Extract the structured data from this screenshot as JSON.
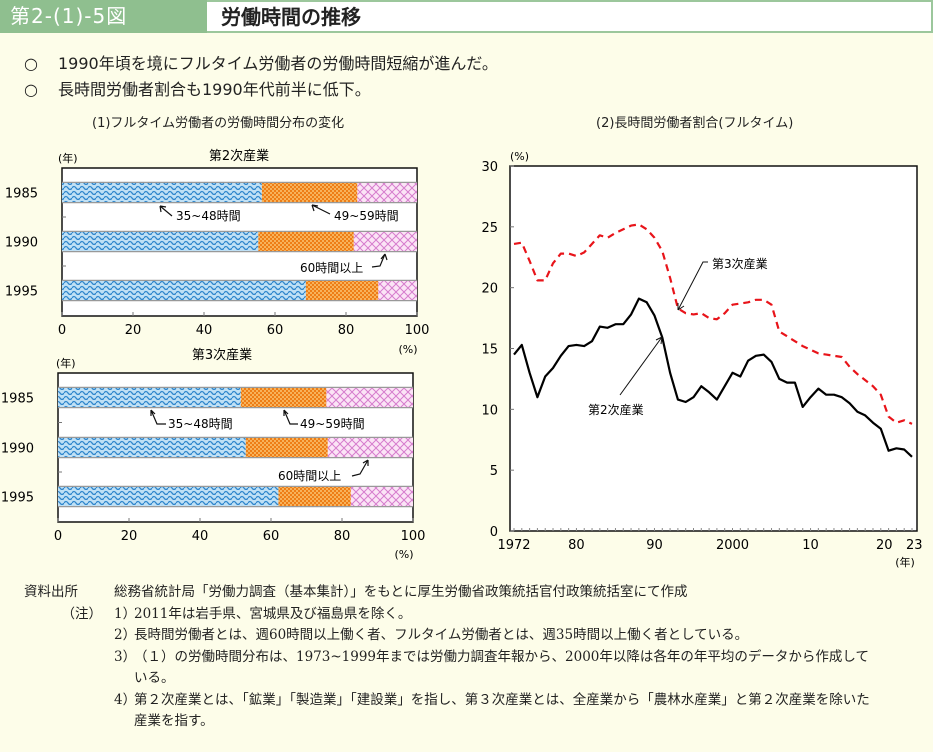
{
  "header": {
    "figure_number": "第2-(1)-5図",
    "title": "労働時間の推移"
  },
  "summary": [
    {
      "mark": "○",
      "text": "1990年頃を境にフルタイム労働者の労働時間短縮が進んだ。"
    },
    {
      "mark": "○",
      "text": "長時間労働者割合も1990年代前半に低下。"
    }
  ],
  "panel1_title": "(1)フルタイム労働者の労働時間分布の変化",
  "panel2_title": "(2)長時間労働者割合(フルタイム)",
  "colors": {
    "header_green": "#8fbf8f",
    "bar_35_48": "#3a8fd0",
    "bar_49_59": "#f39a3a",
    "bar_60_plus": "#e08ad8",
    "line_secondary": "#000000",
    "line_tertiary": "#e8141a"
  },
  "chart_data": [
    {
      "type": "bar",
      "orientation": "horizontal-stacked",
      "title": "第2次産業",
      "ylabel": "(年)",
      "xlabel": "(%)",
      "xlim": [
        0,
        100
      ],
      "xticks": [
        "0",
        "20",
        "40",
        "60",
        "80",
        "100"
      ],
      "categories": [
        "1985",
        "1990",
        "1995"
      ],
      "series": [
        {
          "name": "35~48時間",
          "values": [
            56.3,
            55.3,
            68.7
          ]
        },
        {
          "name": "49~59時間",
          "values": [
            26.9,
            26.9,
            20.4
          ]
        },
        {
          "name": "60時間以上",
          "values": [
            16.8,
            17.8,
            10.9
          ]
        }
      ],
      "annotations": [
        "35~48時間",
        "49~59時間",
        "60時間以上"
      ]
    },
    {
      "type": "bar",
      "orientation": "horizontal-stacked",
      "title": "第3次産業",
      "ylabel": "(年)",
      "xlabel": "(%)",
      "xlim": [
        0,
        100
      ],
      "xticks": [
        "0",
        "20",
        "40",
        "60",
        "80",
        "100"
      ],
      "categories": [
        "1985",
        "1990",
        "1995"
      ],
      "series": [
        {
          "name": "35~48時間",
          "values": [
            51.5,
            52.9,
            62.1
          ]
        },
        {
          "name": "49~59時間",
          "values": [
            24.1,
            23.1,
            20.4
          ]
        },
        {
          "name": "60時間以上",
          "values": [
            24.4,
            24.0,
            17.5
          ]
        }
      ],
      "annotations": [
        "35~48時間",
        "49~59時間",
        "60時間以上"
      ]
    },
    {
      "type": "line",
      "ylabel": "(%)",
      "xlabel": "(年)",
      "ylim": [
        0,
        30
      ],
      "xlim": [
        1972,
        2023
      ],
      "yticks": [
        "0",
        "5",
        "10",
        "15",
        "20",
        "25",
        "30"
      ],
      "xticks": [
        {
          "year": 1972,
          "label": "1972"
        },
        {
          "year": 1980,
          "label": "80"
        },
        {
          "year": 1990,
          "label": "90"
        },
        {
          "year": 2000,
          "label": "2000"
        },
        {
          "year": 2010,
          "label": "10"
        },
        {
          "year": 2020,
          "label": "20"
        },
        {
          "year": 2023,
          "label": "23"
        }
      ],
      "x": [
        1972,
        1973,
        1974,
        1975,
        1976,
        1977,
        1978,
        1979,
        1980,
        1981,
        1982,
        1983,
        1984,
        1985,
        1986,
        1987,
        1988,
        1989,
        1990,
        1991,
        1992,
        1993,
        1994,
        1995,
        1996,
        1997,
        1998,
        1999,
        2000,
        2001,
        2002,
        2003,
        2004,
        2005,
        2006,
        2007,
        2008,
        2009,
        2010,
        2011,
        2012,
        2013,
        2014,
        2015,
        2016,
        2017,
        2018,
        2019,
        2020,
        2021,
        2022,
        2023
      ],
      "series": [
        {
          "name": "第2次産業",
          "style": "solid",
          "values": [
            14.5,
            15.3,
            13.0,
            11.0,
            12.7,
            13.4,
            14.4,
            15.2,
            15.3,
            15.2,
            15.6,
            16.8,
            16.7,
            17.0,
            17.0,
            17.8,
            19.1,
            18.8,
            17.7,
            15.9,
            13.0,
            10.8,
            10.6,
            11.0,
            11.9,
            11.4,
            10.8,
            11.9,
            13.0,
            12.7,
            14.0,
            14.4,
            14.5,
            13.9,
            12.5,
            12.2,
            12.2,
            10.2,
            11.0,
            11.7,
            11.2,
            11.2,
            11.0,
            10.5,
            9.8,
            9.5,
            8.9,
            8.4,
            6.6,
            6.8,
            6.7,
            6.1
          ]
        },
        {
          "name": "第3次産業",
          "style": "dashed",
          "values": [
            23.6,
            23.7,
            22.2,
            20.6,
            20.6,
            22.0,
            22.8,
            22.8,
            22.6,
            22.9,
            23.6,
            24.3,
            24.1,
            24.5,
            24.8,
            25.1,
            25.2,
            24.8,
            24.1,
            23.0,
            20.8,
            18.3,
            17.9,
            17.8,
            17.9,
            17.5,
            17.4,
            17.9,
            18.6,
            18.7,
            18.8,
            19.0,
            19.0,
            18.6,
            16.4,
            16.0,
            15.6,
            15.2,
            14.9,
            14.6,
            14.5,
            14.4,
            14.3,
            13.5,
            12.9,
            12.4,
            11.9,
            11.2,
            9.4,
            8.9,
            9.1,
            8.8
          ]
        }
      ],
      "annotations": [
        "第3次産業",
        "第2次産業"
      ]
    }
  ],
  "notes": {
    "source_label": "資料出所",
    "source_text": "総務省統計局「労働力調査（基本集計）」をもとに厚生労働省政策統括官付政策統括室にて作成",
    "notes_label": "（注）",
    "items": [
      {
        "num": "1）",
        "text": "2011年は岩手県、宮城県及び福島県を除く。"
      },
      {
        "num": "2）",
        "text": "長時間労働者とは、週60時間以上働く者、フルタイム労働者とは、週35時間以上働く者としている。"
      },
      {
        "num": "3）",
        "text": "（１）の労働時間分布は、1973~1999年までは労働力調査年報から、2000年以降は各年の年平均のデータから作成している。"
      },
      {
        "num": "4）",
        "text": "第２次産業とは、「鉱業」「製造業」「建設業」を指し、第３次産業とは、全産業から「農林水産業」と第２次産業を除いた産業を指す。"
      }
    ]
  }
}
